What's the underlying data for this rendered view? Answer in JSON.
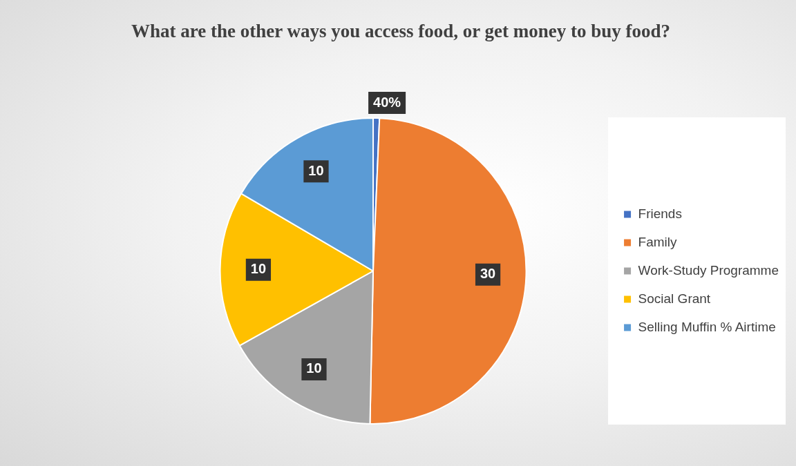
{
  "chart_data": {
    "type": "pie",
    "title": "What are the other ways you access food, or get money to buy food?",
    "categories": [
      "Friends",
      "Family",
      "Work-Study Programme",
      "Social Grant",
      "Selling Muffin % Airtime"
    ],
    "values": [
      0.4,
      30,
      10,
      10,
      10
    ],
    "value_labels": [
      "40%",
      "30",
      "10",
      "10",
      "10"
    ],
    "colors": [
      "#4472c4",
      "#ed7d31",
      "#a5a5a5",
      "#ffc000",
      "#5b9bd5"
    ],
    "legend": "right"
  }
}
